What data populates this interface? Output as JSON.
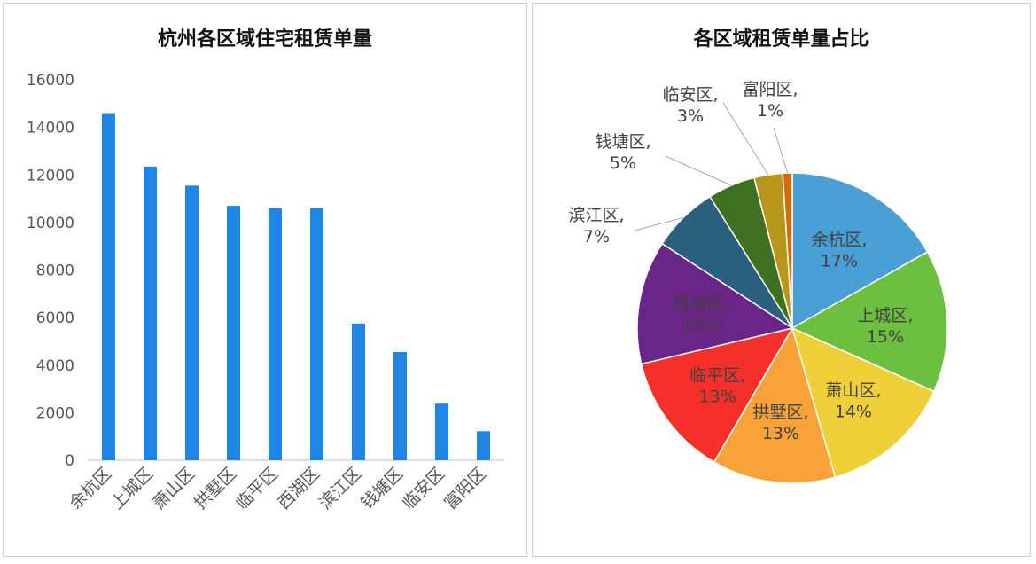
{
  "chart_data": [
    {
      "type": "bar",
      "title": "杭州各区域住宅租赁单量",
      "categories": [
        "余杭区",
        "上城区",
        "萧山区",
        "拱墅区",
        "临平区",
        "西湖区",
        "滨江区",
        "钱塘区",
        "临安区",
        "富阳区"
      ],
      "values": [
        14600,
        12350,
        11550,
        10700,
        10600,
        10600,
        5750,
        4550,
        2380,
        1220
      ],
      "ylim": [
        0,
        16000
      ],
      "yticks": [
        "0",
        "2000",
        "4000",
        "6000",
        "8000",
        "10000",
        "12000",
        "14000",
        "16000"
      ],
      "color": "#1f86e6",
      "grid": false
    },
    {
      "type": "pie",
      "title": "各区域租赁单量占比",
      "labels": [
        "余杭区",
        "上城区",
        "萧山区",
        "拱墅区",
        "临平区",
        "西湖区",
        "滨江区",
        "钱塘区",
        "临安区",
        "富阳区"
      ],
      "values": [
        17,
        15,
        14,
        13,
        13,
        13,
        7,
        5,
        3,
        1
      ],
      "percent_labels": [
        "17%",
        "15%",
        "14%",
        "13%",
        "13%",
        "13%",
        "7%",
        "5%",
        "3%",
        "1%"
      ],
      "colors": [
        "#4a9fd5",
        "#6dbf3f",
        "#f0d038",
        "#f9a23a",
        "#f5302a",
        "#6a2588",
        "#2a5f7e",
        "#3f6f21",
        "#b8961b",
        "#d16c0b"
      ],
      "legend": "none"
    }
  ]
}
